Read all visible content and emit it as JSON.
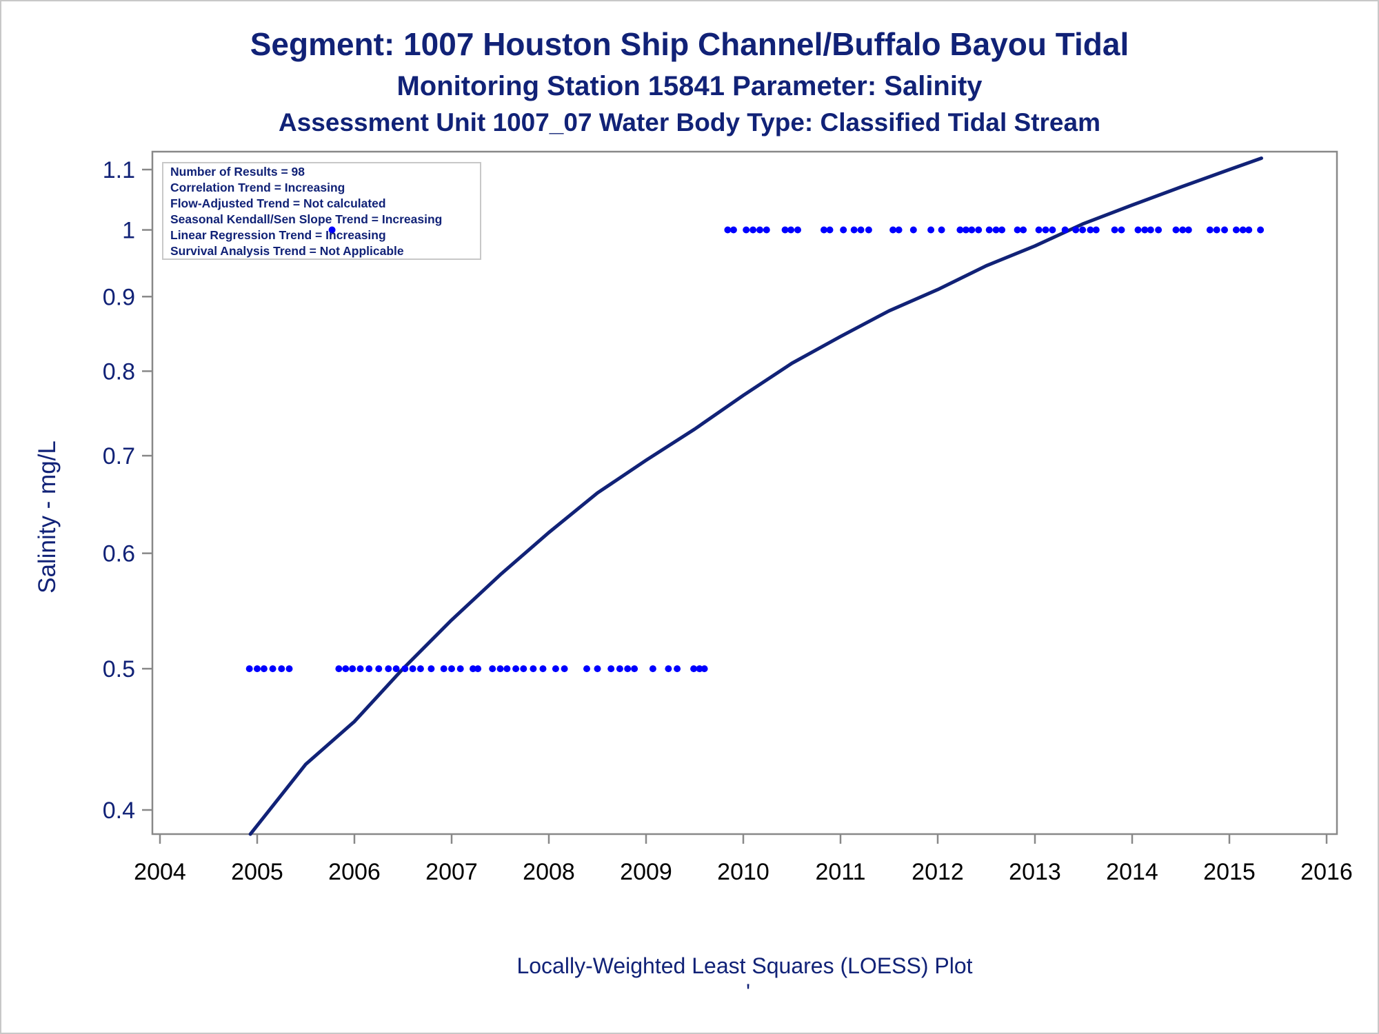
{
  "header": {
    "title": "Segment: 1007  Houston Ship Channel/Buffalo Bayou Tidal",
    "subtitle": "Monitoring Station 15841 Parameter: Salinity",
    "subtitle2": "Assessment Unit 1007_07   Water Body Type: Classified Tidal Stream"
  },
  "stats_box": {
    "lines": [
      "Number of Results = 98",
      "Correlation Trend = Increasing",
      "Flow-Adjusted Trend = Not calculated",
      "Seasonal Kendall/Sen Slope Trend = Increasing",
      "Linear Regression Trend = Increasing",
      "Survival Analysis Trend = Not Applicable"
    ]
  },
  "footer": {
    "caption": "Locally-Weighted Least Squares (LOESS) Plot",
    "mark": "'"
  },
  "colors": {
    "points": "#0000ff",
    "curve": "#112277",
    "text": "#112277",
    "frame": "#888888"
  },
  "chart_data": {
    "type": "scatter",
    "title": "Segment: 1007  Houston Ship Channel/Buffalo Bayou Tidal",
    "xlabel": "",
    "ylabel": "Salinity - mg/L",
    "yscale": "log",
    "xlim": [
      2004,
      2016
    ],
    "ylim": [
      0.38,
      1.13
    ],
    "xticks": [
      "2004",
      "2005",
      "2006",
      "2007",
      "2008",
      "2009",
      "2010",
      "2011",
      "2012",
      "2013",
      "2014",
      "2015",
      "2016"
    ],
    "yticks": [
      "0.4",
      "0.5",
      "0.6",
      "0.7",
      "0.8",
      "0.9",
      "1",
      "1.1"
    ],
    "grid": false,
    "series": [
      {
        "kind": "points",
        "x": [
          2004.92,
          2005.0,
          2005.07,
          2005.16,
          2005.25,
          2005.33,
          2005.84,
          2005.91,
          2005.98,
          2006.06,
          2006.15,
          2006.25,
          2006.35,
          2006.43,
          2006.52,
          2006.6,
          2006.68,
          2006.79,
          2006.92,
          2007.0,
          2007.09,
          2007.22,
          2007.27,
          2007.42,
          2007.5,
          2007.57,
          2007.66,
          2007.74,
          2007.84,
          2007.94,
          2008.07,
          2008.16,
          2008.39,
          2008.5,
          2008.64,
          2008.73,
          2008.81,
          2008.88,
          2009.07,
          2009.23,
          2009.32,
          2009.49,
          2009.55,
          2009.6,
          2005.77,
          2009.84,
          2009.9,
          2010.03,
          2010.1,
          2010.17,
          2010.24,
          2010.43,
          2010.49,
          2010.56,
          2010.83,
          2010.89,
          2011.03,
          2011.14,
          2011.21,
          2011.29,
          2011.54,
          2011.6,
          2011.75,
          2011.93,
          2012.04,
          2012.23,
          2012.29,
          2012.35,
          2012.42,
          2012.53,
          2012.6,
          2012.66,
          2012.82,
          2012.88,
          2013.04,
          2013.11,
          2013.18,
          2013.31,
          2013.42,
          2013.49,
          2013.57,
          2013.63,
          2013.82,
          2013.89,
          2014.06,
          2014.13,
          2014.19,
          2014.27,
          2014.45,
          2014.52,
          2014.58,
          2014.8,
          2014.87,
          2014.95,
          2015.07,
          2015.14,
          2015.2,
          2015.32
        ],
        "y": [
          0.5,
          0.5,
          0.5,
          0.5,
          0.5,
          0.5,
          0.5,
          0.5,
          0.5,
          0.5,
          0.5,
          0.5,
          0.5,
          0.5,
          0.5,
          0.5,
          0.5,
          0.5,
          0.5,
          0.5,
          0.5,
          0.5,
          0.5,
          0.5,
          0.5,
          0.5,
          0.5,
          0.5,
          0.5,
          0.5,
          0.5,
          0.5,
          0.5,
          0.5,
          0.5,
          0.5,
          0.5,
          0.5,
          0.5,
          0.5,
          0.5,
          0.5,
          0.5,
          0.5,
          1.0,
          1.0,
          1.0,
          1.0,
          1.0,
          1.0,
          1.0,
          1.0,
          1.0,
          1.0,
          1.0,
          1.0,
          1.0,
          1.0,
          1.0,
          1.0,
          1.0,
          1.0,
          1.0,
          1.0,
          1.0,
          1.0,
          1.0,
          1.0,
          1.0,
          1.0,
          1.0,
          1.0,
          1.0,
          1.0,
          1.0,
          1.0,
          1.0,
          1.0,
          1.0,
          1.0,
          1.0,
          1.0,
          1.0,
          1.0,
          1.0,
          1.0,
          1.0,
          1.0,
          1.0,
          1.0,
          1.0,
          1.0,
          1.0,
          1.0,
          1.0,
          1.0,
          1.0,
          1.0
        ]
      },
      {
        "kind": "line",
        "x": [
          2004.93,
          2005.5,
          2006.0,
          2006.5,
          2007.0,
          2007.5,
          2008.0,
          2008.5,
          2009.0,
          2009.5,
          2010.0,
          2010.5,
          2011.0,
          2011.5,
          2012.0,
          2012.5,
          2013.0,
          2013.5,
          2014.0,
          2014.5,
          2015.0,
          2015.33
        ],
        "y": [
          0.385,
          0.43,
          0.46,
          0.5,
          0.54,
          0.58,
          0.62,
          0.66,
          0.695,
          0.73,
          0.77,
          0.81,
          0.845,
          0.88,
          0.91,
          0.945,
          0.975,
          1.01,
          1.04,
          1.07,
          1.1,
          1.12
        ]
      }
    ]
  }
}
